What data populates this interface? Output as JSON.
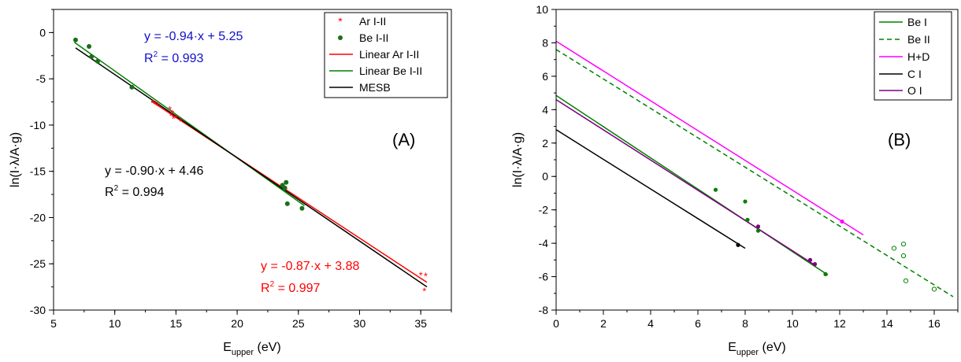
{
  "chart_data": [
    {
      "type": "scatter",
      "panel_label": "(A)",
      "xlabel": "E_upper (eV)",
      "xlabel_main": "E",
      "xlabel_sub": "upper",
      "xlabel_unit": " (eV)",
      "ylabel": "ln(I·λ/A·g)",
      "xlim": [
        5,
        37.5
      ],
      "ylim": [
        -30,
        2.5
      ],
      "xticks": [
        "5",
        "10",
        "15",
        "20",
        "25",
        "30",
        "35"
      ],
      "yticks": [
        "0",
        "-5",
        "-10",
        "-15",
        "-20",
        "-25",
        "-30"
      ],
      "grid": false,
      "legend_position": "top-right",
      "legend": [
        "Ar I-II",
        "Be I-II",
        "Linear Ar I-II",
        "Linear Be I-II",
        "MESB"
      ],
      "series": [
        {
          "name": "Ar I-II",
          "kind": "scatter",
          "marker": "asterisk",
          "color": "#ff0000",
          "points": [
            [
              13.1,
              -7.6
            ],
            [
              13.3,
              -7.7
            ],
            [
              13.5,
              -7.9
            ],
            [
              14.5,
              -8.3
            ],
            [
              14.6,
              -9.0
            ],
            [
              14.7,
              -8.7
            ],
            [
              14.8,
              -9.3
            ],
            [
              15.0,
              -9.2
            ],
            [
              15.4,
              -9.6
            ],
            [
              35.0,
              -26.2
            ],
            [
              35.3,
              -27.9
            ],
            [
              35.4,
              -26.3
            ]
          ]
        },
        {
          "name": "Be I-II",
          "kind": "scatter",
          "marker": "circle",
          "color": "#1b6e1b",
          "points": [
            [
              6.8,
              -0.8
            ],
            [
              7.9,
              -1.5
            ],
            [
              8.1,
              -2.6
            ],
            [
              8.6,
              -3.1
            ],
            [
              11.4,
              -5.9
            ],
            [
              23.7,
              -16.5
            ],
            [
              23.9,
              -16.8
            ],
            [
              24.0,
              -16.2
            ],
            [
              24.1,
              -18.5
            ],
            [
              25.3,
              -19.0
            ]
          ]
        },
        {
          "name": "Linear Ar I-II",
          "kind": "line",
          "color": "#ff0000",
          "x_range": [
            13.0,
            35.5
          ],
          "slope": -0.87,
          "intercept": 3.88
        },
        {
          "name": "Linear Be I-II",
          "kind": "line",
          "color": "#008000",
          "x_range": [
            6.7,
            25.5
          ],
          "slope": -0.94,
          "intercept": 5.25
        },
        {
          "name": "MESB",
          "kind": "line",
          "color": "#000000",
          "x_range": [
            6.8,
            35.5
          ],
          "slope": -0.9,
          "intercept": 4.46
        }
      ],
      "annotations": [
        {
          "eq": "y = -0.94·x + 5.25",
          "r2_value": " = 0.993",
          "color": "#1010c8"
        },
        {
          "eq": "y = -0.90·x + 4.46",
          "r2_value": " = 0.994",
          "color": "#000000"
        },
        {
          "eq": "y = -0.87·x + 3.88",
          "r2_value": " = 0.997",
          "color": "#ff0000"
        }
      ]
    },
    {
      "type": "line",
      "panel_label": "(B)",
      "xlabel": "E_upper (eV)",
      "xlabel_main": "E",
      "xlabel_sub": "upper",
      "xlabel_unit": " (eV)",
      "ylabel": "ln(I·λ/A·g)",
      "xlim": [
        0,
        17
      ],
      "ylim": [
        -8,
        10
      ],
      "xticks": [
        "0",
        "2",
        "4",
        "6",
        "8",
        "10",
        "12",
        "14",
        "16"
      ],
      "yticks": [
        "10",
        "8",
        "6",
        "4",
        "2",
        "0",
        "-2",
        "-4",
        "-6",
        "-8"
      ],
      "grid": false,
      "legend_position": "top-right",
      "legend": [
        "Be I",
        "Be II",
        "H+D",
        "C I",
        "O I"
      ],
      "series": [
        {
          "name": "Be I",
          "color": "#008000",
          "dash": "solid",
          "line": [
            [
              0,
              4.85
            ],
            [
              11.5,
              -5.9
            ]
          ],
          "points": [
            [
              6.75,
              -0.8
            ],
            [
              8.0,
              -1.5
            ],
            [
              8.1,
              -2.6
            ],
            [
              8.55,
              -3.25
            ],
            [
              11.4,
              -5.85
            ]
          ],
          "marker": "filled"
        },
        {
          "name": "Be II",
          "color": "#008000",
          "dash": "dashed",
          "line": [
            [
              0,
              7.6
            ],
            [
              16.8,
              -7.2
            ]
          ],
          "points": [
            [
              14.3,
              -4.3
            ],
            [
              14.7,
              -4.05
            ],
            [
              14.7,
              -4.75
            ],
            [
              14.8,
              -6.25
            ],
            [
              16.0,
              -6.75
            ]
          ],
          "marker": "open"
        },
        {
          "name": "H+D",
          "color": "#ff00ff",
          "dash": "solid",
          "line": [
            [
              0,
              8.1
            ],
            [
              13.0,
              -3.5
            ]
          ],
          "points": [
            [
              12.1,
              -2.7
            ]
          ],
          "marker": "filled"
        },
        {
          "name": "C I",
          "color": "#000000",
          "dash": "solid",
          "line": [
            [
              0,
              2.8
            ],
            [
              8.0,
              -4.3
            ]
          ],
          "points": [
            [
              7.7,
              -4.1
            ]
          ],
          "marker": "filled"
        },
        {
          "name": "O I",
          "color": "#800080",
          "dash": "solid",
          "line": [
            [
              0,
              4.6
            ],
            [
              11.0,
              -5.35
            ]
          ],
          "points": [
            [
              8.55,
              -3.0
            ],
            [
              10.75,
              -5.0
            ],
            [
              10.95,
              -5.25
            ]
          ],
          "marker": "filled"
        }
      ]
    }
  ]
}
